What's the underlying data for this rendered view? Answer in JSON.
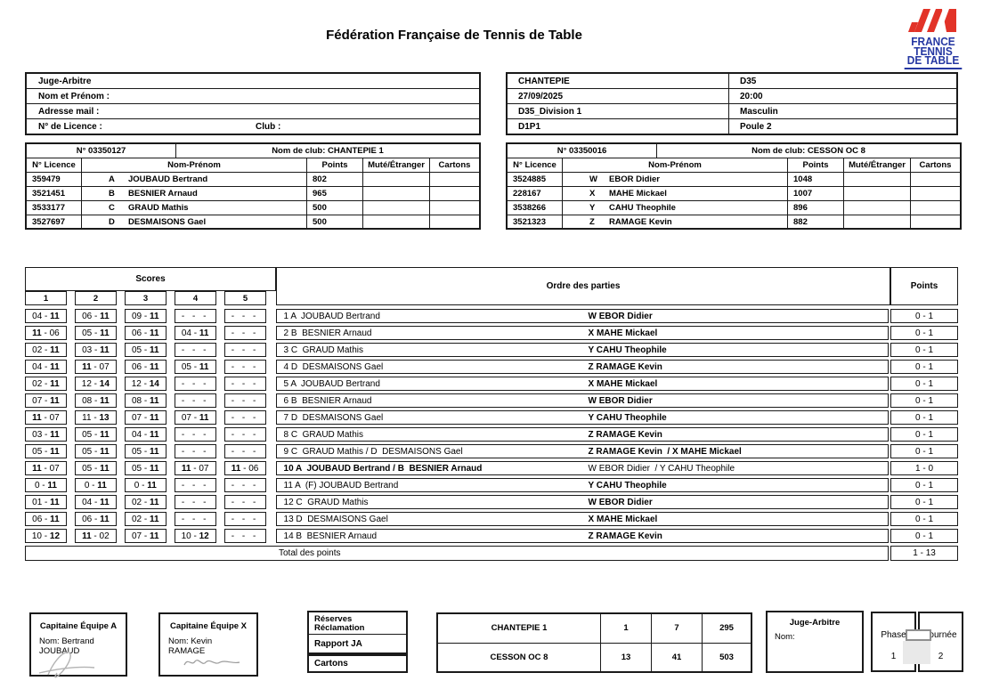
{
  "title": "Fédération Française de Tennis de Table",
  "logo": {
    "line1": "FRANCE",
    "line2": "TENNIS",
    "line3": "DE TABLE",
    "brand_red": "#e23328",
    "brand_blue": "#2537a2"
  },
  "judge_header": {
    "title": "Juge-Arbitre",
    "nom": "Nom et Prénom :",
    "mail": "Adresse mail :",
    "licence": "N° de Licence :",
    "club": "Club :"
  },
  "match_info": {
    "rows": [
      [
        "CHANTEPIE",
        "D35"
      ],
      [
        "27/09/2025",
        "20:00"
      ],
      [
        "D35_Division 1",
        "Masculin"
      ],
      [
        "D1P1",
        "Poule 2"
      ]
    ]
  },
  "team_headers": [
    "N° Licence",
    "Nom-Prénom",
    "Points",
    "Muté/Étranger",
    "Cartons"
  ],
  "teams": [
    {
      "number": "N° 03350127",
      "club": "Nom de club: CHANTEPIE 1",
      "players": [
        {
          "licence": "359479",
          "letter": "A",
          "name": "JOUBAUD Bertrand",
          "points": "802"
        },
        {
          "licence": "3521451",
          "letter": "B",
          "name": "BESNIER Arnaud",
          "points": "965"
        },
        {
          "licence": "3533177",
          "letter": "C",
          "name": "GRAUD Mathis",
          "points": "500"
        },
        {
          "licence": "3527697",
          "letter": "D",
          "name": "DESMAISONS Gael",
          "points": "500"
        }
      ]
    },
    {
      "number": "N° 03350016",
      "club": "Nom de club: CESSON OC 8",
      "players": [
        {
          "licence": "3524885",
          "letter": "W",
          "name": "EBOR Didier",
          "points": "1048"
        },
        {
          "licence": "228167",
          "letter": "X",
          "name": "MAHE Mickael",
          "points": "1007"
        },
        {
          "licence": "3538266",
          "letter": "Y",
          "name": "CAHU Theophile",
          "points": "896"
        },
        {
          "licence": "3521323",
          "letter": "Z",
          "name": "RAMAGE Kevin",
          "points": "882"
        }
      ]
    }
  ],
  "match_table": {
    "scores_header": "Scores",
    "set_numbers": [
      "1",
      "2",
      "3",
      "4",
      "5"
    ],
    "ordre_header": "Ordre des parties",
    "points_header": "Points",
    "rows": [
      {
        "sets": [
          [
            "04",
            "11",
            "v"
          ],
          [
            "06",
            "11",
            "v"
          ],
          [
            "09",
            "11",
            "v"
          ],
          null,
          null
        ],
        "left": "1 A  JOUBAUD Bertrand",
        "right": "W EBOR Didier",
        "win": "v",
        "points": "0 - 1"
      },
      {
        "sets": [
          [
            "11",
            "06",
            "h"
          ],
          [
            "05",
            "11",
            "v"
          ],
          [
            "06",
            "11",
            "v"
          ],
          [
            "04",
            "11",
            "v"
          ],
          null
        ],
        "left": "2 B  BESNIER Arnaud",
        "right": "X MAHE Mickael",
        "win": "v",
        "points": "0 - 1"
      },
      {
        "sets": [
          [
            "02",
            "11",
            "v"
          ],
          [
            "03",
            "11",
            "v"
          ],
          [
            "05",
            "11",
            "v"
          ],
          null,
          null
        ],
        "left": "3 C  GRAUD Mathis",
        "right": "Y CAHU Theophile",
        "win": "v",
        "points": "0 - 1"
      },
      {
        "sets": [
          [
            "04",
            "11",
            "v"
          ],
          [
            "11",
            "07",
            "h"
          ],
          [
            "06",
            "11",
            "v"
          ],
          [
            "05",
            "11",
            "v"
          ],
          null
        ],
        "left": "4 D  DESMAISONS Gael",
        "right": "Z RAMAGE Kevin",
        "win": "v",
        "points": "0 - 1"
      },
      {
        "sets": [
          [
            "02",
            "11",
            "v"
          ],
          [
            "12",
            "14",
            "v"
          ],
          [
            "12",
            "14",
            "v"
          ],
          null,
          null
        ],
        "left": "5 A  JOUBAUD Bertrand",
        "right": "X MAHE Mickael",
        "win": "v",
        "points": "0 - 1"
      },
      {
        "sets": [
          [
            "07",
            "11",
            "v"
          ],
          [
            "08",
            "11",
            "v"
          ],
          [
            "08",
            "11",
            "v"
          ],
          null,
          null
        ],
        "left": "6 B  BESNIER Arnaud",
        "right": "W EBOR Didier",
        "win": "v",
        "points": "0 - 1"
      },
      {
        "sets": [
          [
            "11",
            "07",
            "h"
          ],
          [
            "11",
            "13",
            "v"
          ],
          [
            "07",
            "11",
            "v"
          ],
          [
            "07",
            "11",
            "v"
          ],
          null
        ],
        "left": "7 D  DESMAISONS Gael",
        "right": "Y CAHU Theophile",
        "win": "v",
        "points": "0 - 1"
      },
      {
        "sets": [
          [
            "03",
            "11",
            "v"
          ],
          [
            "05",
            "11",
            "v"
          ],
          [
            "04",
            "11",
            "v"
          ],
          null,
          null
        ],
        "left": "8 C  GRAUD Mathis",
        "right": "Z RAMAGE Kevin",
        "win": "v",
        "points": "0 - 1"
      },
      {
        "sets": [
          [
            "05",
            "11",
            "v"
          ],
          [
            "05",
            "11",
            "v"
          ],
          [
            "05",
            "11",
            "v"
          ],
          null,
          null
        ],
        "left": "9 C  GRAUD Mathis / D  DESMAISONS Gael",
        "right": "Z RAMAGE Kevin  / X MAHE Mickael",
        "win": "v",
        "points": "0 - 1"
      },
      {
        "sets": [
          [
            "11",
            "07",
            "h"
          ],
          [
            "05",
            "11",
            "v"
          ],
          [
            "05",
            "11",
            "v"
          ],
          [
            "11",
            "07",
            "h"
          ],
          [
            "11",
            "06",
            "h"
          ]
        ],
        "left": "10 A  JOUBAUD Bertrand / B  BESNIER Arnaud",
        "right": "W EBOR Didier  / Y CAHU Theophile",
        "win": "h",
        "points": "1 - 0"
      },
      {
        "sets": [
          [
            "0",
            "11",
            "v"
          ],
          [
            "0",
            "11",
            "v"
          ],
          [
            "0",
            "11",
            "v"
          ],
          null,
          null
        ],
        "left": "11 A  (F) JOUBAUD Bertrand",
        "right": "Y CAHU Theophile",
        "win": "v",
        "points": "0 - 1"
      },
      {
        "sets": [
          [
            "01",
            "11",
            "v"
          ],
          [
            "04",
            "11",
            "v"
          ],
          [
            "02",
            "11",
            "v"
          ],
          null,
          null
        ],
        "left": "12 C  GRAUD Mathis",
        "right": "W EBOR Didier",
        "win": "v",
        "points": "0 - 1"
      },
      {
        "sets": [
          [
            "06",
            "11",
            "v"
          ],
          [
            "06",
            "11",
            "v"
          ],
          [
            "02",
            "11",
            "v"
          ],
          null,
          null
        ],
        "left": "13 D  DESMAISONS Gael",
        "right": "X MAHE Mickael",
        "win": "v",
        "points": "0 - 1"
      },
      {
        "sets": [
          [
            "10",
            "12",
            "v"
          ],
          [
            "11",
            "02",
            "h"
          ],
          [
            "07",
            "11",
            "v"
          ],
          [
            "10",
            "12",
            "v"
          ],
          null
        ],
        "left": "14 B  BESNIER Arnaud",
        "right": "Z RAMAGE Kevin",
        "win": "v",
        "points": "0 - 1"
      }
    ],
    "empty_set": "- - -",
    "total_label": "Total des points",
    "total_value": "1 - 13"
  },
  "footer": {
    "captain_a": {
      "title": "Capitaine Équipe A",
      "line1": "Nom: Bertrand",
      "line2": "JOUBAUD"
    },
    "captain_x": {
      "title": "Capitaine Équipe X",
      "line1": "Nom: Kevin",
      "line2": "RAMAGE"
    },
    "reserves": {
      "line1": "Réserves",
      "line2": "Réclamation"
    },
    "rapport": "Rapport JA",
    "cartons": "Cartons",
    "recap": {
      "rows": [
        [
          "CHANTEPIE 1",
          "1",
          "7",
          "295"
        ],
        [
          "CESSON OC 8",
          "13",
          "41",
          "503"
        ]
      ]
    },
    "judge": {
      "title": "Juge-Arbitre",
      "nom": "Nom:"
    },
    "phase": {
      "label": "Phase",
      "value": "1"
    },
    "journee": {
      "label": "Journée",
      "value": "2"
    }
  }
}
